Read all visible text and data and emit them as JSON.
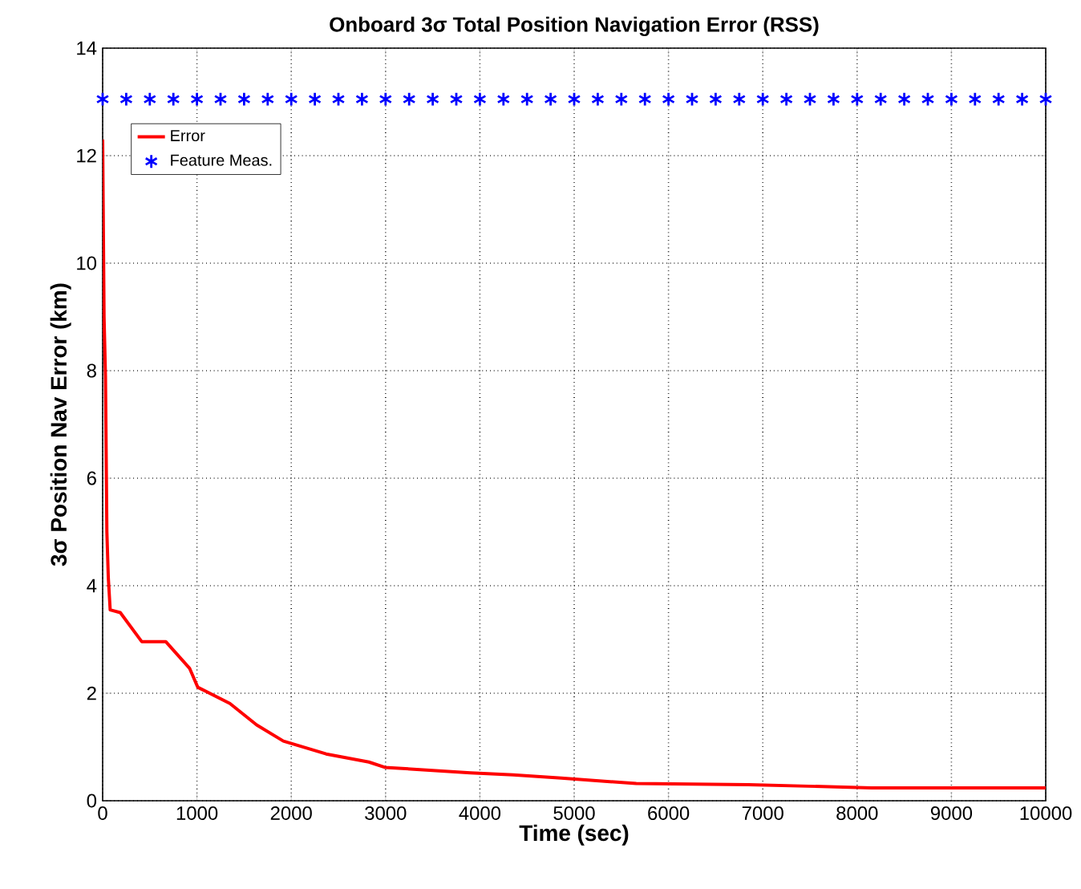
{
  "chart_data": {
    "type": "line",
    "title": "Onboard 3σ Total Position Navigation Error (RSS)",
    "xlabel": "Time (sec)",
    "ylabel": "3σ Position Nav Error (km)",
    "xlim": [
      0,
      10000
    ],
    "ylim": [
      0,
      14
    ],
    "xticks": [
      0,
      1000,
      2000,
      3000,
      4000,
      5000,
      6000,
      7000,
      8000,
      9000,
      10000
    ],
    "yticks": [
      0,
      2,
      4,
      6,
      8,
      10,
      12,
      14
    ],
    "grid": true,
    "legend": "top left",
    "series": [
      {
        "name": "Error",
        "color": "#ff0000",
        "marker": "none",
        "x": [
          0,
          15,
          30,
          45,
          60,
          80,
          187,
          414,
          669,
          923,
          1009,
          1349,
          1633,
          1916,
          2370,
          2823,
          2993,
          3900,
          4354,
          4864,
          5658,
          6848,
          8152,
          10000
        ],
        "values": [
          12.3,
          9.0,
          7.9,
          5.0,
          4.15,
          3.55,
          3.5,
          2.96,
          2.96,
          2.46,
          2.11,
          1.81,
          1.41,
          1.11,
          0.87,
          0.72,
          0.62,
          0.52,
          0.48,
          0.42,
          0.32,
          0.3,
          0.24,
          0.24
        ]
      },
      {
        "name": "Feature Meas.",
        "color": "#0000ff",
        "type": "scatter",
        "marker": "cross",
        "x": [
          0,
          250,
          500,
          750,
          1000,
          1250,
          1500,
          1750,
          2000,
          2250,
          2500,
          2750,
          3000,
          3250,
          3500,
          3750,
          4000,
          4250,
          4500,
          4750,
          5000,
          5250,
          5500,
          5750,
          6000,
          6250,
          6500,
          6750,
          7000,
          7250,
          7500,
          7750,
          8000,
          8250,
          8500,
          8750,
          9000,
          9250,
          9500,
          9750,
          10000
        ],
        "values": [
          13.05,
          13.05,
          13.05,
          13.05,
          13.05,
          13.05,
          13.05,
          13.05,
          13.05,
          13.05,
          13.05,
          13.05,
          13.05,
          13.05,
          13.05,
          13.05,
          13.05,
          13.05,
          13.05,
          13.05,
          13.05,
          13.05,
          13.05,
          13.05,
          13.05,
          13.05,
          13.05,
          13.05,
          13.05,
          13.05,
          13.05,
          13.05,
          13.05,
          13.05,
          13.05,
          13.05,
          13.05,
          13.05,
          13.05,
          13.05,
          13.05
        ]
      }
    ]
  }
}
